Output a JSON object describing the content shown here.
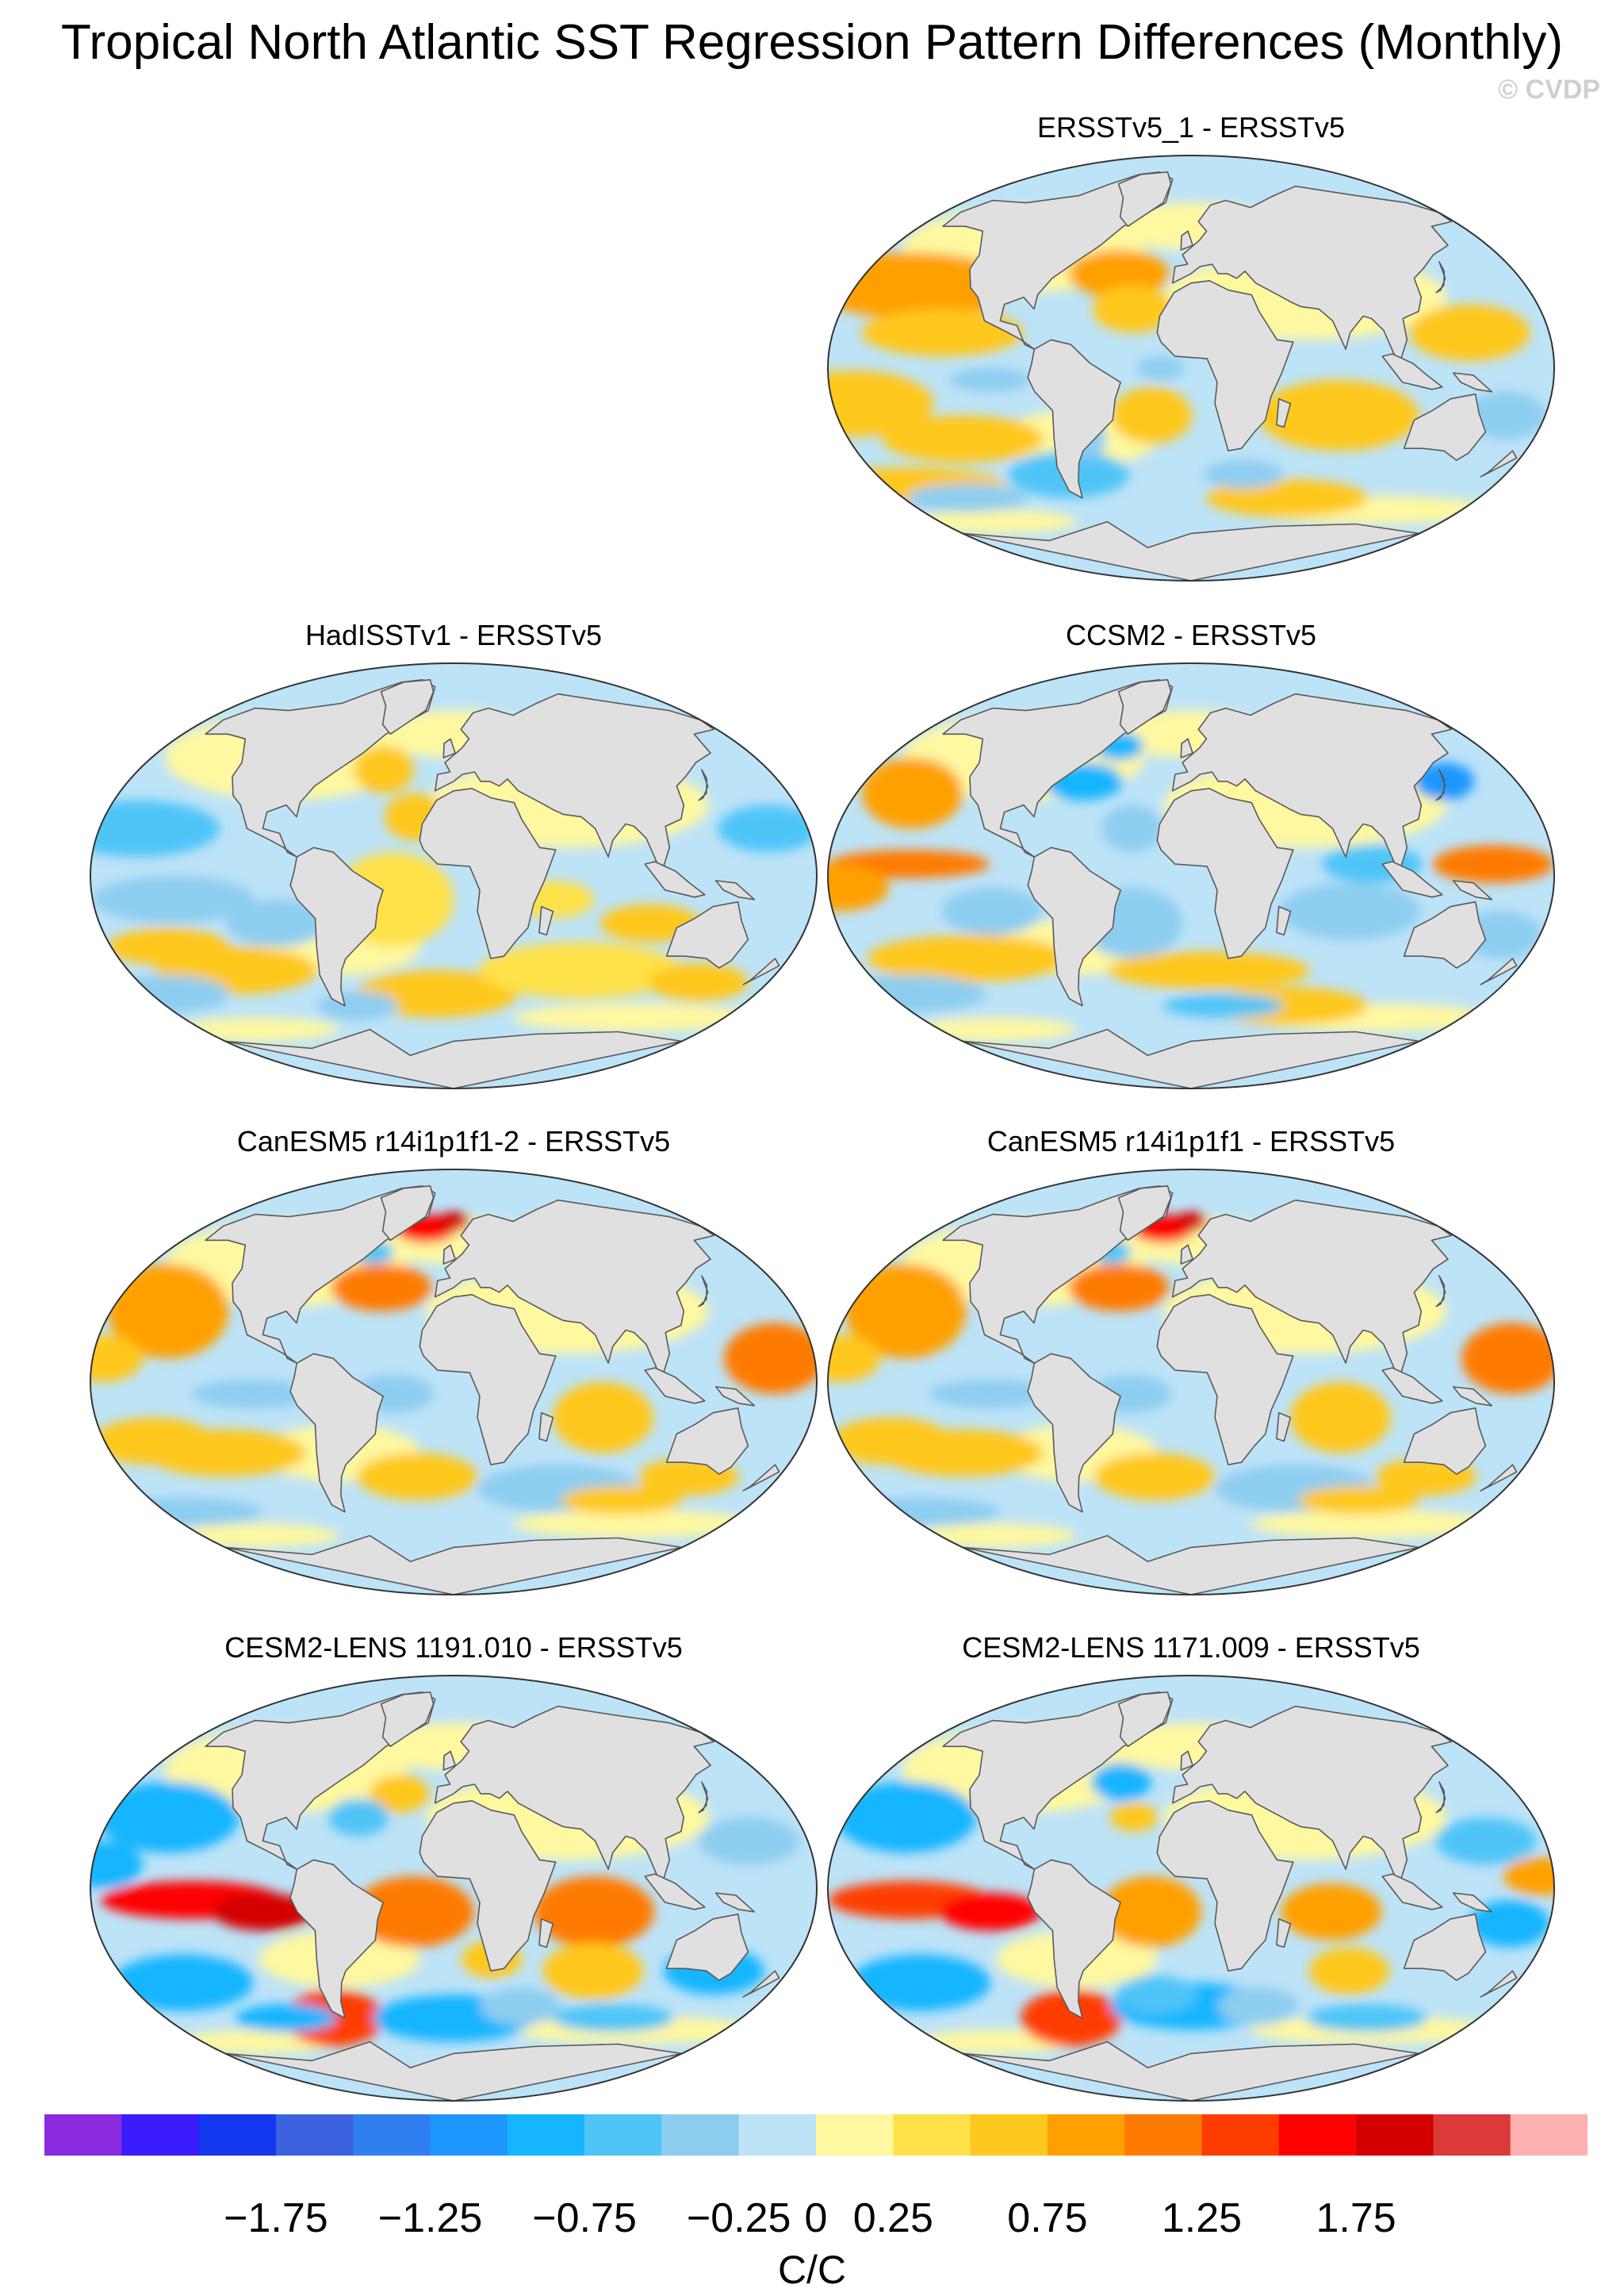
{
  "figure": {
    "title": "Tropical North Atlantic SST Regression Pattern Differences (Monthly)",
    "credit": "© CVDP"
  },
  "colors": {
    "land": "#e0e0e0",
    "coast": "#5a5a5a",
    "palette": [
      "#8a2be2",
      "#3a1cff",
      "#1437f0",
      "#3b63e0",
      "#2f7ff0",
      "#1c97ff",
      "#15b5ff",
      "#4fc5f7",
      "#8dcdf0",
      "#bde3f7",
      "#fff8a0",
      "#ffe14a",
      "#ffc81e",
      "#ffa000",
      "#ff7a00",
      "#ff3c00",
      "#ff0000",
      "#d40000",
      "#dc3a3a",
      "#ffb0b0"
    ]
  },
  "panels": [
    {
      "title": "ERSSTv5_1 - ERSSTv5",
      "pattern": "obs1",
      "mode": "weak"
    },
    {
      "title": "HadISSTv1 - ERSSTv5",
      "pattern": "had",
      "mode": "noisy"
    },
    {
      "title": "CCSM2 - ERSSTv5",
      "pattern": "ccsm",
      "mode": "moderate"
    },
    {
      "title": "CanESM5 r14i1p1f1-2 - ERSSTv5",
      "pattern": "can",
      "mode": "warm"
    },
    {
      "title": "CanESM5 r14i1p1f1 - ERSSTv5",
      "pattern": "can",
      "mode": "warm"
    },
    {
      "title": "CESM2-LENS 1191.010 - ERSSTv5",
      "pattern": "cesm",
      "mode": "strong"
    },
    {
      "title": "CESM2-LENS 1171.009 - ERSSTv5",
      "pattern": "cesm2",
      "mode": "strong"
    }
  ],
  "colorbar": {
    "levels": [
      -2.25,
      -2.0,
      -1.75,
      -1.5,
      -1.25,
      -1.0,
      -0.75,
      -0.5,
      -0.25,
      0,
      0.25,
      0.5,
      0.75,
      1.0,
      1.25,
      1.5,
      1.75,
      2.0,
      2.25
    ],
    "tick_labels": [
      "-1.75",
      "-1.25",
      "-0.75",
      "-0.25",
      "0",
      "0.25",
      "0.75",
      "1.25",
      "1.75"
    ],
    "units": "C/C"
  }
}
